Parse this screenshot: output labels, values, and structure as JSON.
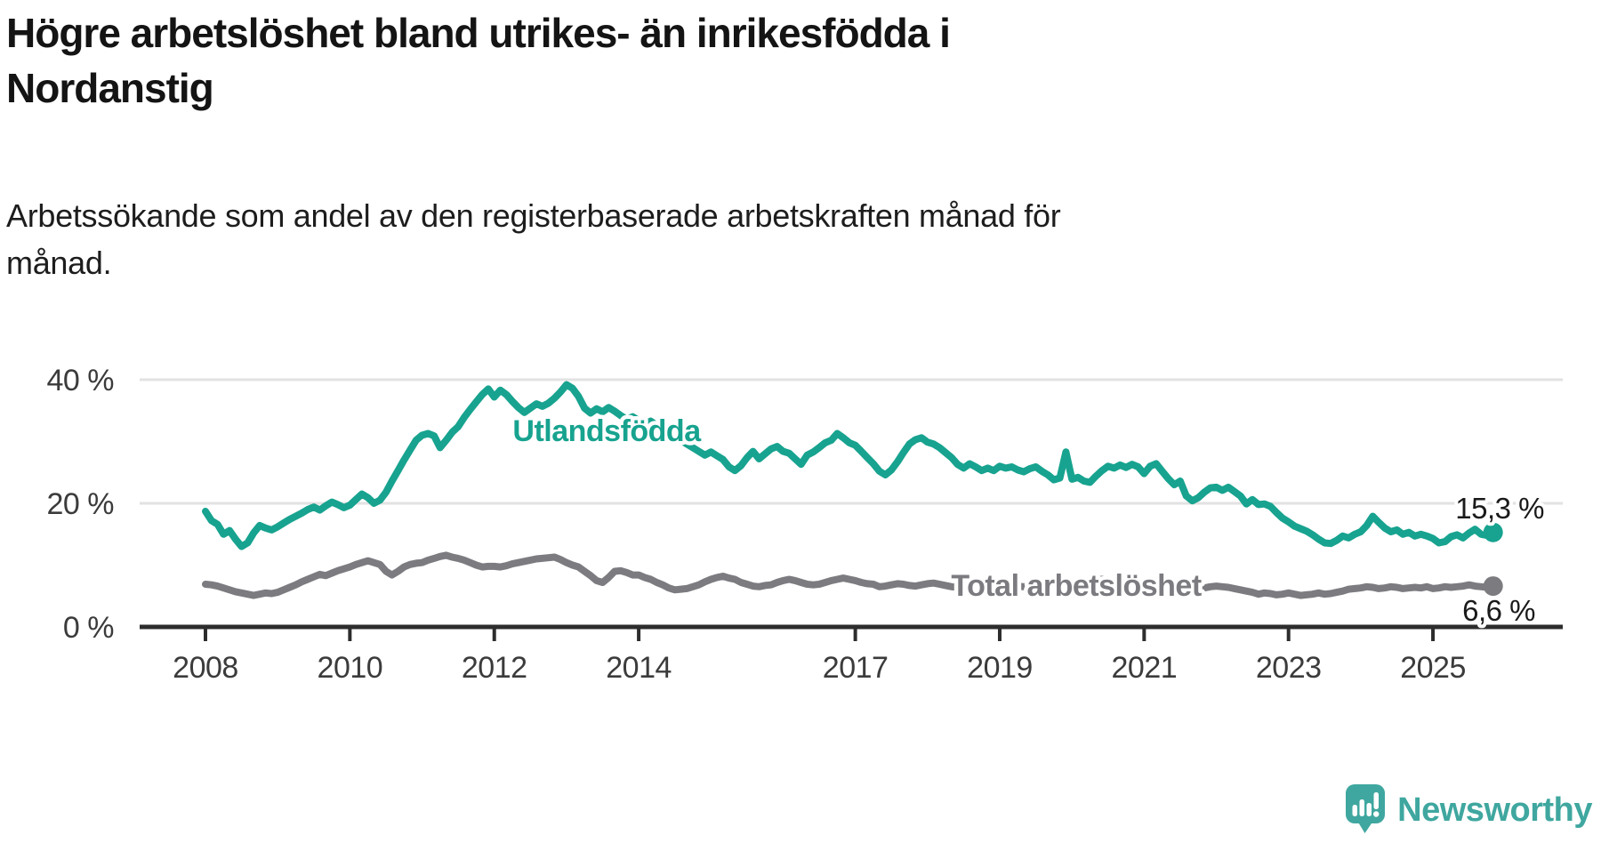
{
  "header": {
    "title_line1": "Högre arbetslöshet bland utrikes- än inrikesfödda i",
    "title_line2": "Nordanstig",
    "subtitle_line1": "Arbetssökande som andel av den registerbaserade arbetskraften månad för",
    "subtitle_line2": "månad."
  },
  "chart_data": {
    "type": "line",
    "title": "Högre arbetslöshet bland utrikes- än inrikesfödda i Nordanstig",
    "subtitle": "Arbetssökande som andel av den registerbaserade arbetskraften månad för månad.",
    "x_unit": "month",
    "x_start": "2008-01",
    "x_end": "2025-11",
    "x_start_year": 2008,
    "x_ticks": [
      2008,
      2010,
      2012,
      2014,
      2017,
      2019,
      2021,
      2023,
      2025
    ],
    "y_ticks": [
      {
        "value": 0,
        "label": "0 %"
      },
      {
        "value": 20,
        "label": "20 %"
      },
      {
        "value": 40,
        "label": "40 %"
      }
    ],
    "ylim": [
      0,
      42
    ],
    "grid": "horizontal",
    "legend_position": "inline-annotations",
    "series": [
      {
        "name": "utlandsfodda",
        "label": "Utlandsfödda",
        "color": "#17a38f",
        "end_label": "15,3 %",
        "end_value": 15.3,
        "values": [
          18.7,
          17.2,
          16.6,
          15.0,
          15.6,
          14.2,
          13.0,
          13.6,
          15.2,
          16.4,
          16.0,
          15.7,
          16.2,
          16.8,
          17.4,
          17.9,
          18.4,
          19.0,
          19.4,
          18.9,
          19.6,
          20.2,
          19.8,
          19.3,
          19.7,
          20.6,
          21.5,
          20.9,
          20.0,
          20.5,
          21.8,
          23.6,
          25.3,
          27.0,
          28.6,
          30.2,
          31.0,
          31.3,
          30.9,
          29.0,
          30.2,
          31.5,
          32.4,
          33.9,
          35.2,
          36.4,
          37.6,
          38.5,
          37.2,
          38.3,
          37.6,
          36.5,
          35.5,
          34.7,
          35.4,
          36.1,
          35.7,
          36.2,
          37.0,
          38.0,
          39.2,
          38.6,
          37.3,
          35.4,
          34.6,
          35.3,
          34.8,
          35.5,
          34.9,
          34.2,
          33.6,
          34.0,
          33.4,
          32.8,
          33.3,
          32.6,
          32.0,
          31.4,
          30.8,
          30.2,
          29.6,
          29.0,
          28.4,
          27.8,
          28.3,
          27.7,
          27.1,
          25.9,
          25.3,
          26.1,
          27.4,
          28.4,
          27.2,
          28.0,
          28.8,
          29.2,
          28.4,
          28.1,
          27.2,
          26.3,
          27.8,
          28.3,
          29.0,
          29.8,
          30.2,
          31.3,
          30.6,
          29.8,
          29.4,
          28.4,
          27.4,
          26.4,
          25.2,
          24.6,
          25.4,
          26.7,
          28.2,
          29.6,
          30.3,
          30.6,
          29.9,
          29.6,
          29.0,
          28.2,
          27.4,
          26.3,
          25.7,
          26.4,
          25.9,
          25.3,
          25.7,
          25.3,
          26.0,
          25.7,
          25.9,
          25.4,
          25.1,
          25.6,
          25.9,
          25.2,
          24.6,
          23.8,
          24.1,
          28.3,
          23.9,
          24.2,
          23.6,
          23.4,
          24.4,
          25.3,
          26.0,
          25.7,
          26.2,
          25.8,
          26.3,
          25.9,
          24.8,
          26.0,
          26.4,
          25.2,
          24.0,
          23.0,
          23.6,
          21.2,
          20.4,
          20.9,
          21.8,
          22.5,
          22.6,
          22.1,
          22.6,
          21.9,
          21.2,
          19.9,
          20.6,
          19.8,
          19.9,
          19.5,
          18.5,
          17.6,
          17.0,
          16.3,
          15.9,
          15.5,
          14.9,
          14.2,
          13.6,
          13.5,
          14.0,
          14.7,
          14.4,
          15.0,
          15.4,
          16.4,
          17.9,
          16.9,
          16.0,
          15.4,
          15.7,
          15.0,
          15.3,
          14.7,
          15.0,
          14.7,
          14.3,
          13.6,
          13.8,
          14.6,
          14.9,
          14.4,
          15.2,
          15.8,
          15.0,
          14.8,
          15.3
        ]
      },
      {
        "name": "total-arbetsloshet",
        "label": "Total arbetslöshet",
        "color": "#7b7b80",
        "end_label": "6,6 %",
        "end_value": 6.6,
        "values": [
          6.9,
          6.8,
          6.6,
          6.3,
          6.0,
          5.7,
          5.5,
          5.3,
          5.1,
          5.3,
          5.5,
          5.4,
          5.6,
          6.0,
          6.4,
          6.8,
          7.3,
          7.7,
          8.1,
          8.5,
          8.3,
          8.7,
          9.1,
          9.4,
          9.7,
          10.1,
          10.4,
          10.7,
          10.4,
          10.1,
          9.0,
          8.4,
          9.0,
          9.7,
          10.1,
          10.3,
          10.4,
          10.8,
          11.1,
          11.4,
          11.6,
          11.3,
          11.1,
          10.8,
          10.4,
          10.0,
          9.7,
          9.8,
          9.8,
          9.7,
          9.9,
          10.2,
          10.4,
          10.6,
          10.8,
          11.0,
          11.1,
          11.2,
          11.3,
          10.9,
          10.4,
          10.0,
          9.7,
          9.0,
          8.3,
          7.5,
          7.2,
          8.0,
          9.0,
          9.1,
          8.8,
          8.4,
          8.4,
          8.0,
          7.7,
          7.2,
          6.8,
          6.3,
          6.0,
          6.1,
          6.2,
          6.5,
          6.8,
          7.3,
          7.7,
          8.0,
          8.2,
          7.9,
          7.7,
          7.2,
          6.9,
          6.6,
          6.5,
          6.7,
          6.8,
          7.2,
          7.5,
          7.7,
          7.5,
          7.2,
          6.9,
          6.8,
          6.9,
          7.2,
          7.5,
          7.7,
          7.9,
          7.7,
          7.5,
          7.2,
          7.0,
          6.9,
          6.5,
          6.6,
          6.8,
          7.0,
          6.9,
          6.7,
          6.6,
          6.8,
          7.0,
          7.1,
          6.9,
          6.7,
          6.5,
          6.4,
          6.6,
          6.8,
          6.7,
          6.5,
          6.4,
          6.6,
          6.8,
          6.9,
          6.7,
          6.6,
          6.5,
          6.6,
          6.8,
          6.7,
          6.5,
          6.4,
          6.6,
          7.2,
          7.0,
          6.9,
          7.1,
          7.4,
          7.6,
          7.7,
          7.6,
          7.4,
          7.3,
          7.2,
          7.1,
          7.0,
          7.1,
          7.2,
          7.1,
          6.9,
          6.8,
          6.7,
          6.5,
          6.6,
          6.4,
          6.2,
          6.3,
          6.5,
          6.6,
          6.5,
          6.4,
          6.2,
          6.0,
          5.8,
          5.6,
          5.3,
          5.5,
          5.4,
          5.2,
          5.3,
          5.5,
          5.3,
          5.1,
          5.2,
          5.3,
          5.5,
          5.3,
          5.4,
          5.6,
          5.8,
          6.1,
          6.2,
          6.3,
          6.5,
          6.4,
          6.2,
          6.3,
          6.5,
          6.4,
          6.2,
          6.3,
          6.4,
          6.3,
          6.5,
          6.2,
          6.3,
          6.5,
          6.4,
          6.5,
          6.6,
          6.8,
          6.6,
          6.5,
          6.4,
          6.6
        ]
      }
    ]
  },
  "branding": {
    "logo_text": "Newsworthy",
    "logo_icon": "newsworthy-logo",
    "logo_color": "#3fa79f"
  }
}
